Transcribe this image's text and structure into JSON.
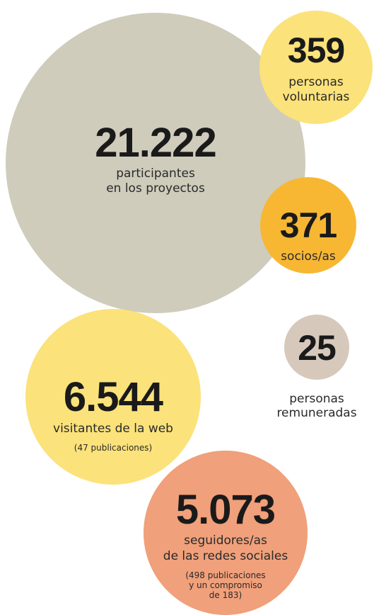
{
  "bubbles": [
    {
      "number": "21.222",
      "lines": [
        "participantes",
        "en los proyectos"
      ]
    },
    {
      "number": "359",
      "lines": [
        "personas",
        "voluntarias"
      ]
    },
    {
      "number": "371",
      "lines": [
        "socios/as"
      ]
    },
    {
      "number": "25",
      "lines": [
        "personas",
        "remuneradas"
      ]
    },
    {
      "number": "6.544",
      "lines": [
        "visitantes de la web"
      ],
      "notes": [
        "(47 publicaciones)"
      ]
    },
    {
      "number": "5.073",
      "lines": [
        "seguidores/as",
        "de las redes sociales"
      ],
      "notes": [
        "(498 publicaciones",
        "y un compromiso",
        "de 183)"
      ]
    }
  ]
}
